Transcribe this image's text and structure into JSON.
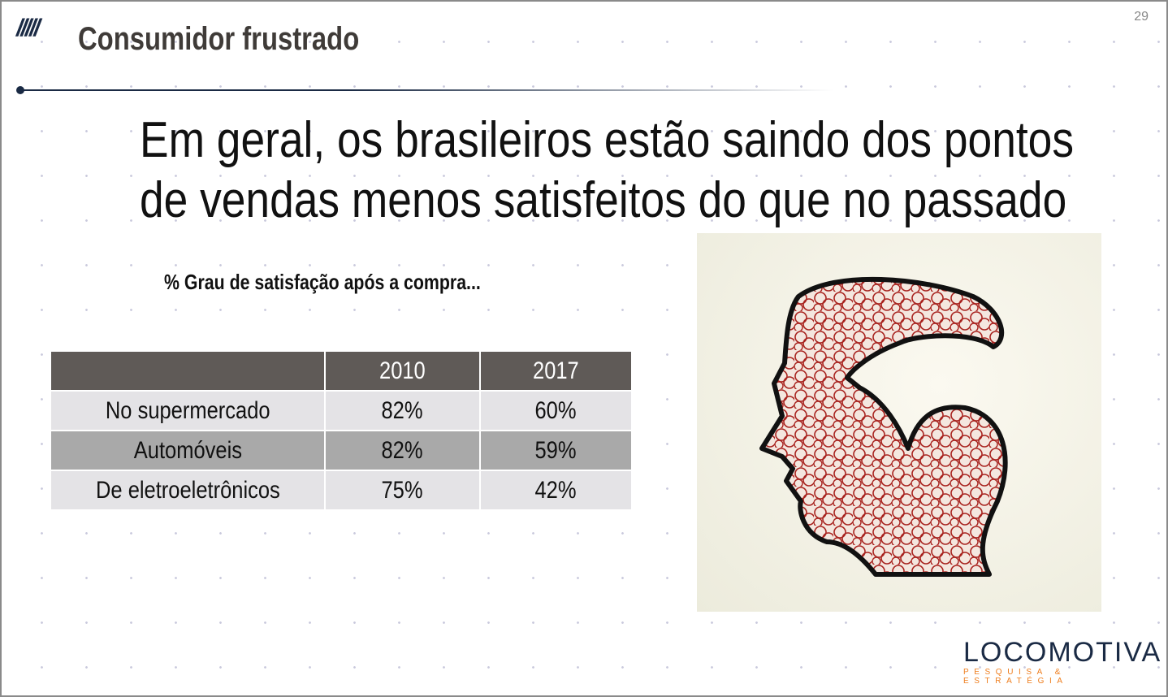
{
  "header": {
    "icon": "slashes-icon",
    "section_title": "Consumidor frustrado",
    "page_number": "29"
  },
  "headline": {
    "line1": "Em geral, os brasileiros estão saindo dos pontos",
    "line2": "de vendas menos satisfeitos do que no passado"
  },
  "table": {
    "caption": "% Grau de satisfação após a compra...",
    "columns": [
      "",
      "2010",
      "2017"
    ],
    "rows": [
      {
        "label": "No supermercado",
        "v2010": "82%",
        "v2017": "60%"
      },
      {
        "label": "Automóveis",
        "v2010": "82%",
        "v2017": "59%"
      },
      {
        "label": "De eletroeletrônicos",
        "v2010": "75%",
        "v2017": "42%"
      }
    ]
  },
  "logo": {
    "name": "LOCOMOTIVA",
    "tagline": "PESQUISA & ESTRATÉGIA",
    "colors": {
      "primary": "#1a2a44",
      "accent": "#ee7d1d"
    }
  },
  "colors": {
    "header_row": "#5f5a57",
    "row_light": "#e4e3e6",
    "row_dark": "#a9a9a9",
    "head_fill": "#a8221e"
  }
}
